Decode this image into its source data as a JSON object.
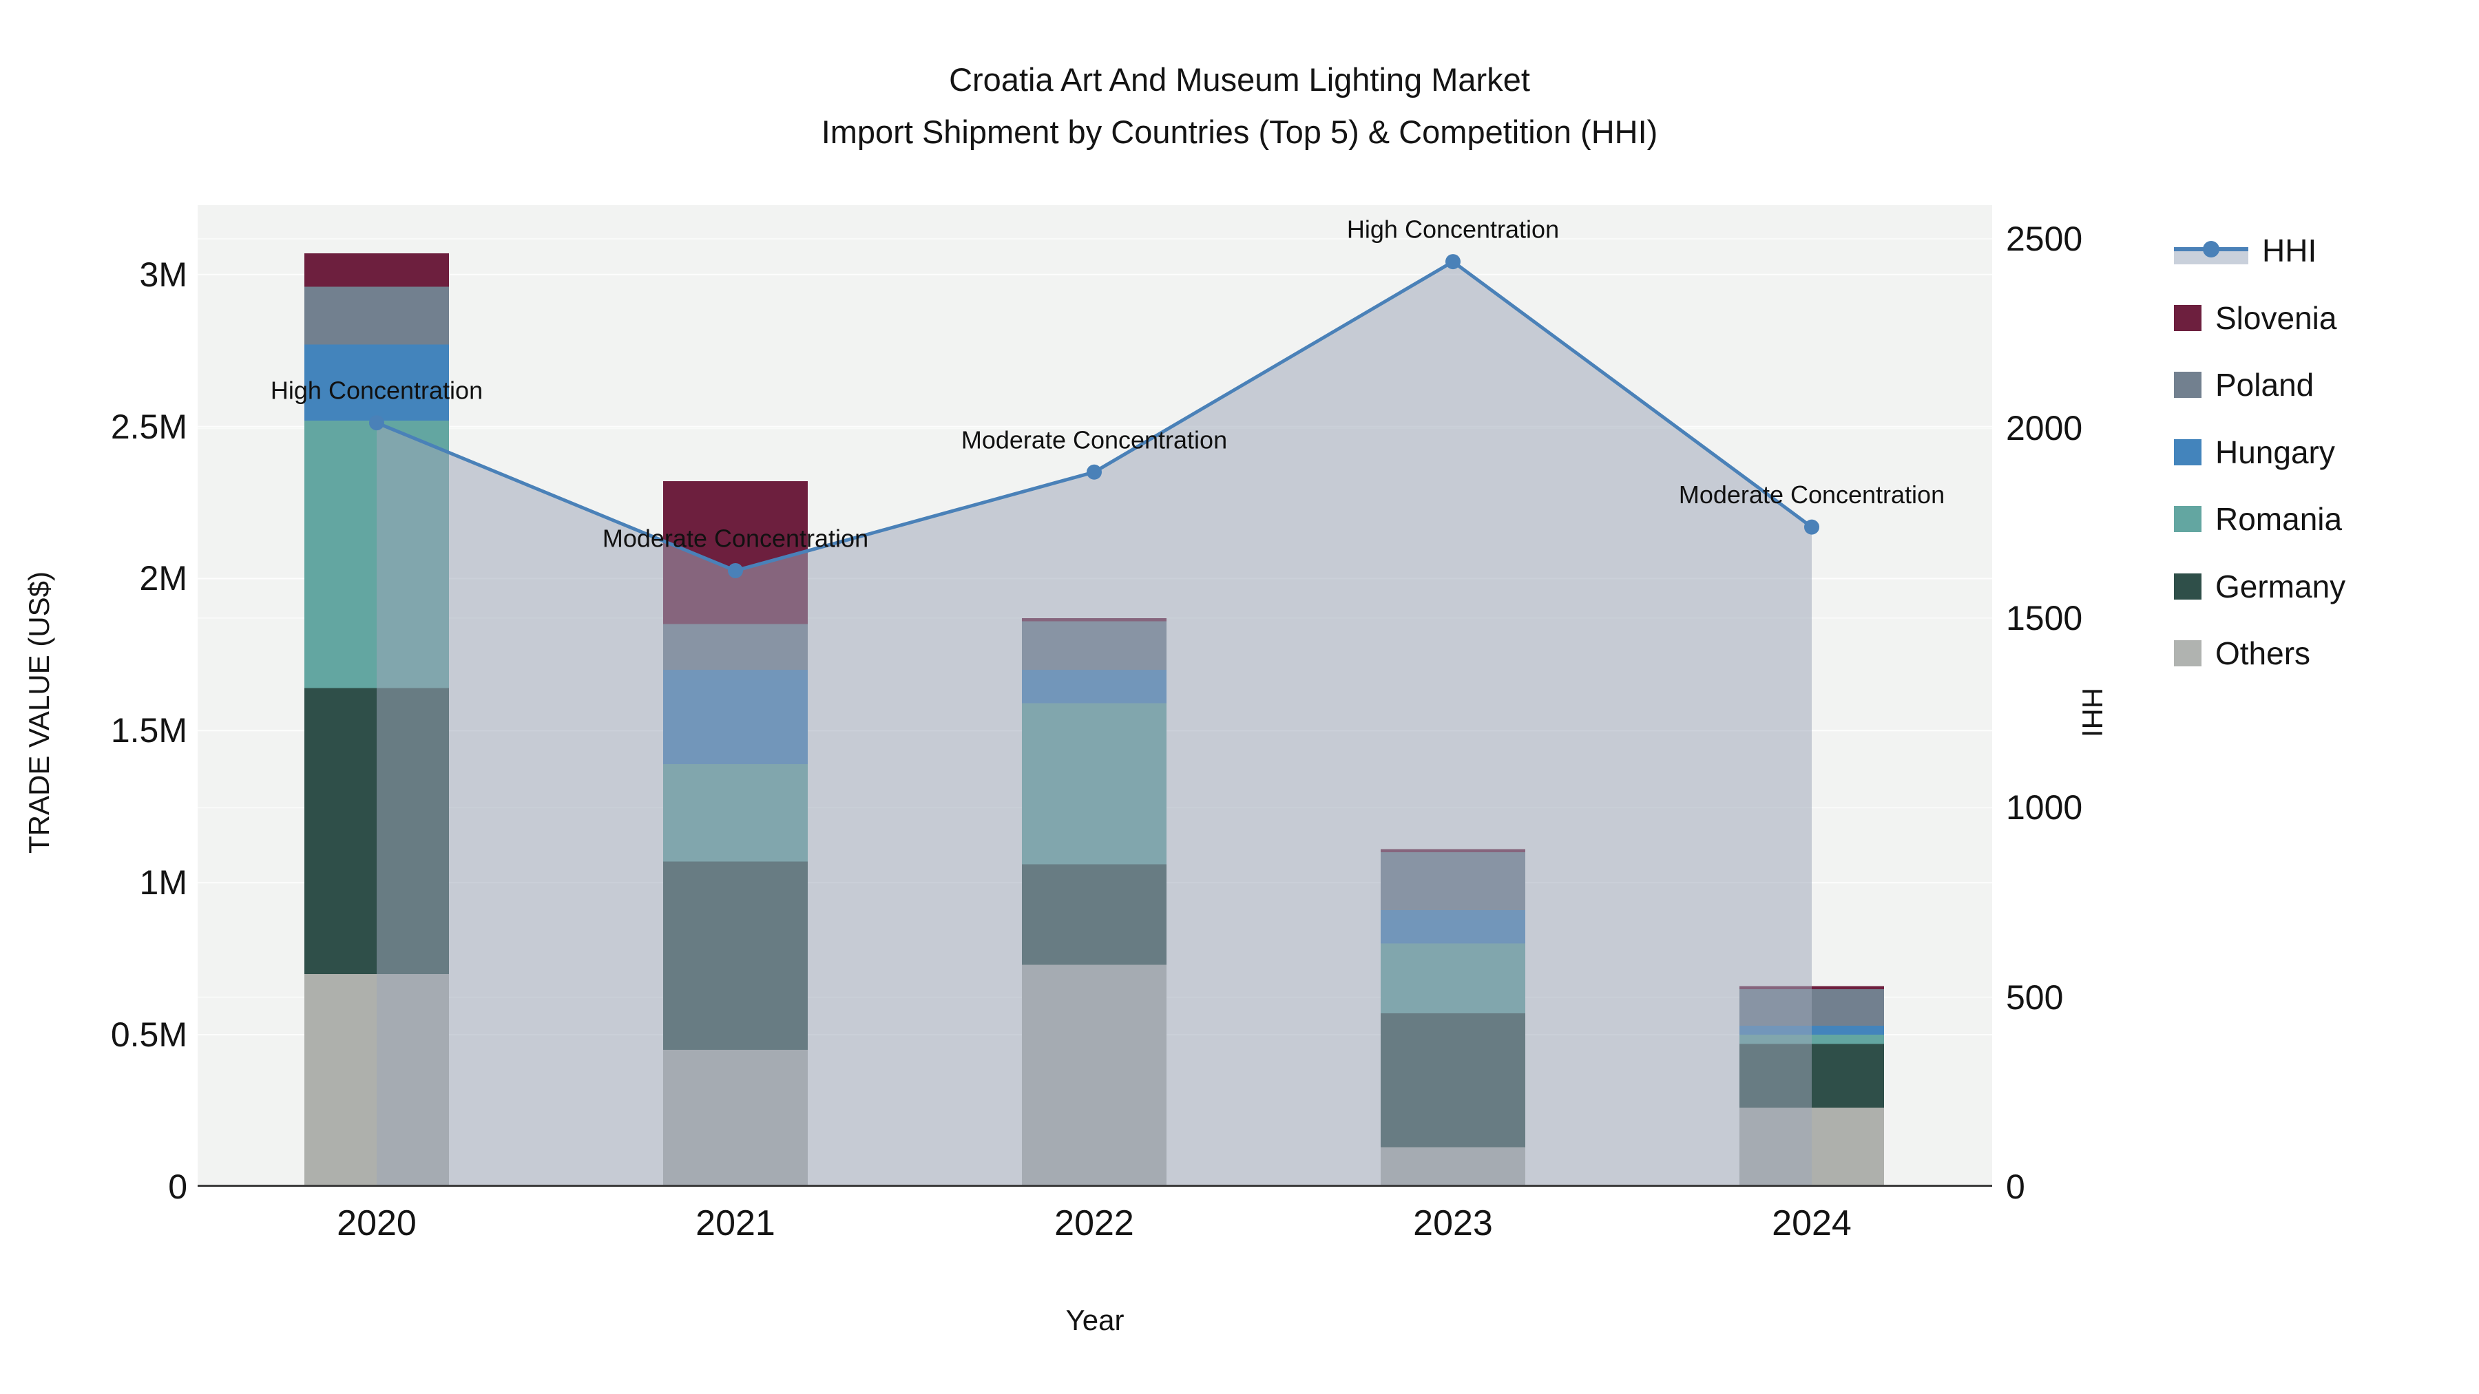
{
  "title": {
    "line1": "Croatia Art And Museum Lighting Market",
    "line2": "Import Shipment by Countries (Top 5) & Competition (HHI)"
  },
  "axes": {
    "y_left": {
      "title": "TRADE VALUE (US$)",
      "tick_labels": [
        "0",
        "0.5M",
        "1M",
        "1.5M",
        "2M",
        "2.5M",
        "3M"
      ],
      "tick_values": [
        0,
        0.5,
        1,
        1.5,
        2,
        2.5,
        3
      ]
    },
    "y_right": {
      "title": "HHI",
      "tick_labels": [
        "0",
        "500",
        "1000",
        "1500",
        "2000",
        "2500"
      ],
      "tick_values": [
        0,
        500,
        1000,
        1500,
        2000,
        2500
      ]
    },
    "x": {
      "title": "Year",
      "tick_labels": [
        "2020",
        "2021",
        "2022",
        "2023",
        "2024"
      ]
    }
  },
  "legend": [
    {
      "label": "HHI",
      "type": "line",
      "color": "#4A81B8",
      "band": "#C9D0DB"
    },
    {
      "label": "Slovenia",
      "type": "swatch",
      "color": "#6D1F3E"
    },
    {
      "label": "Poland",
      "type": "swatch",
      "color": "#72808F"
    },
    {
      "label": "Hungary",
      "type": "swatch",
      "color": "#4384BC"
    },
    {
      "label": "Romania",
      "type": "swatch",
      "color": "#63A6A1"
    },
    {
      "label": "Germany",
      "type": "swatch",
      "color": "#2F4F49"
    },
    {
      "label": "Others",
      "type": "swatch",
      "color": "#B0B3B0"
    }
  ],
  "chart_data": {
    "type": "bar+line",
    "title": "Croatia Art And Museum Lighting Market Import Shipment by Countries (Top 5) & Competition (HHI)",
    "categories": [
      "2020",
      "2021",
      "2022",
      "2023",
      "2024"
    ],
    "bar_unit": "Trade value, millions US$",
    "stack_order_note": "series listed bottom-to-top of stack",
    "series": [
      {
        "name": "Others",
        "color": "#AEB0AC",
        "values": [
          0.7,
          0.45,
          0.73,
          0.13,
          0.26
        ]
      },
      {
        "name": "Germany",
        "color": "#2F4F49",
        "values": [
          0.94,
          0.62,
          0.33,
          0.44,
          0.21
        ]
      },
      {
        "name": "Romania",
        "color": "#63A6A1",
        "values": [
          0.88,
          0.32,
          0.53,
          0.23,
          0.03
        ]
      },
      {
        "name": "Hungary",
        "color": "#4384BC",
        "values": [
          0.25,
          0.31,
          0.11,
          0.11,
          0.03
        ]
      },
      {
        "name": "Poland",
        "color": "#72808F",
        "values": [
          0.19,
          0.15,
          0.16,
          0.19,
          0.12
        ]
      },
      {
        "name": "Slovenia",
        "color": "#6D1F3E",
        "values": [
          0.11,
          0.47,
          0.01,
          0.01,
          0.01
        ]
      }
    ],
    "totals": [
      3.07,
      2.32,
      1.87,
      1.11,
      0.66
    ],
    "line_series": {
      "name": "HHI",
      "axis": "right",
      "color": "#4A81B8",
      "area_fill": "#9DA7B9",
      "area_opacity": 0.52,
      "values": [
        2015,
        1625,
        1885,
        2440,
        1740
      ]
    },
    "annotations": [
      {
        "x": "2020",
        "label": "High Concentration"
      },
      {
        "x": "2021",
        "label": "Moderate Concentration"
      },
      {
        "x": "2022",
        "label": "Moderate Concentration"
      },
      {
        "x": "2023",
        "label": "High Concentration"
      },
      {
        "x": "2024",
        "label": "Moderate Concentration"
      }
    ],
    "ylim_left": [
      0,
      3.228
    ],
    "ylim_right": [
      0,
      2589
    ],
    "legend_position": "right",
    "grid": true,
    "plot_bg": "#F2F3F2",
    "grid_color": "#FFFFFF",
    "axisline_color": "#3C3C3C",
    "xlabel": "Year",
    "ylabel_left": "TRADE VALUE (US$)",
    "ylabel_right": "HHI"
  }
}
